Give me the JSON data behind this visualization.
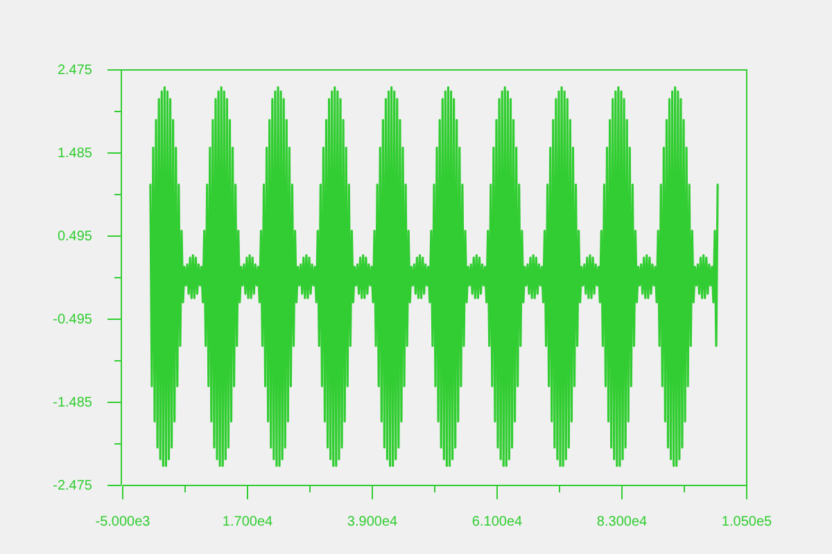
{
  "chart_data": {
    "type": "line",
    "x": [
      0,
      250,
      500,
      750,
      1000,
      1250,
      1500,
      1750,
      2000,
      2250,
      2500,
      2750,
      3000,
      3250,
      3500,
      3750,
      4000,
      4250,
      4500,
      4750,
      5000,
      5250,
      5500,
      5750,
      6000,
      6250,
      6500,
      6750,
      7000,
      7250,
      7500,
      7750,
      8000,
      8250,
      8500,
      8750,
      9000,
      9250,
      9500,
      9750,
      10000,
      10250,
      10500,
      10750,
      11000,
      11250,
      11500,
      11750,
      12000,
      12250,
      12500,
      12750,
      13000,
      13250,
      13500,
      13750,
      14000,
      14250,
      14500,
      14750,
      15000,
      15250,
      15500,
      15750,
      16000,
      16250,
      16500,
      16750,
      17000,
      17250,
      17500,
      17750,
      18000,
      18250,
      18500,
      18750,
      19000,
      19250,
      19500,
      19750,
      20000,
      20250,
      20500,
      20750,
      21000,
      21250,
      21500,
      21750,
      22000,
      22250,
      22500,
      22750,
      23000,
      23250,
      23500,
      23750,
      24000,
      24250,
      24500,
      24750,
      25000,
      25250,
      25500,
      25750,
      26000,
      26250,
      26500,
      26750,
      27000,
      27250,
      27500,
      27750,
      28000,
      28250,
      28500,
      28750,
      29000,
      29250,
      29500,
      29750,
      30000,
      30250,
      30500,
      30750,
      31000,
      31250,
      31500,
      31750,
      32000,
      32250,
      32500,
      32750,
      33000,
      33250,
      33500,
      33750,
      34000,
      34250,
      34500,
      34750,
      35000,
      35250,
      35500,
      35750,
      36000,
      36250,
      36500,
      36750,
      37000,
      37250,
      37500,
      37750,
      38000,
      38250,
      38500,
      38750,
      39000,
      39250,
      39500,
      39750,
      40000,
      40250,
      40500,
      40750,
      41000,
      41250,
      41500,
      41750,
      42000,
      42250,
      42500,
      42750,
      43000,
      43250,
      43500,
      43750,
      44000,
      44250,
      44500,
      44750,
      45000,
      45250,
      45500,
      45750,
      46000,
      46250,
      46500,
      46750,
      47000,
      47250,
      47500,
      47750,
      48000,
      48250,
      48500,
      48750,
      49000,
      49250,
      49500,
      49750,
      50000,
      50250,
      50500,
      50750,
      51000,
      51250,
      51500,
      51750,
      52000,
      52250,
      52500,
      52750,
      53000,
      53250,
      53500,
      53750,
      54000,
      54250,
      54500,
      54750,
      55000,
      55250,
      55500,
      55750,
      56000,
      56250,
      56500,
      56750,
      57000,
      57250,
      57500,
      57750,
      58000,
      58250,
      58500,
      58750,
      59000,
      59250,
      59500,
      59750,
      60000,
      60250,
      60500,
      60750,
      61000,
      61250,
      61500,
      61750,
      62000,
      62250,
      62500,
      62750,
      63000,
      63250,
      63500,
      63750,
      64000,
      64250,
      64500,
      64750,
      65000,
      65250,
      65500,
      65750,
      66000,
      66250,
      66500,
      66750,
      67000,
      67250,
      67500,
      67750,
      68000,
      68250,
      68500,
      68750,
      69000,
      69250,
      69500,
      69750,
      70000,
      70250,
      70500,
      70750,
      71000,
      71250,
      71500,
      71750,
      72000,
      72250,
      72500,
      72750,
      73000,
      73250,
      73500,
      73750,
      74000,
      74250,
      74500,
      74750,
      75000,
      75250,
      75500,
      75750,
      76000,
      76250,
      76500,
      76750,
      77000,
      77250,
      77500,
      77750,
      78000,
      78250,
      78500,
      78750,
      79000,
      79250,
      79500,
      79750,
      80000,
      80250,
      80500,
      80750,
      81000,
      81250,
      81500,
      81750,
      82000,
      82250,
      82500,
      82750,
      83000,
      83250,
      83500,
      83750,
      84000,
      84250,
      84500,
      84750,
      85000,
      85250,
      85500,
      85750,
      86000,
      86250,
      86500,
      86750,
      87000,
      87250,
      87500,
      87750,
      88000,
      88250,
      88500,
      88750,
      89000,
      89250,
      89500,
      89750,
      90000,
      90250,
      90500,
      90750,
      91000,
      91250,
      91500,
      91750,
      92000,
      92250,
      92500,
      92750,
      93000,
      93250,
      93500,
      93750,
      94000,
      94250,
      94500,
      94750,
      95000,
      95250,
      95500,
      95750,
      96000,
      96250,
      96500,
      96750,
      97000,
      97250,
      97500,
      97750,
      98000,
      98250,
      98500,
      98750,
      99000,
      99250,
      99500,
      99750,
      100000
    ],
    "series": [
      {
        "color": "#32cd32",
        "values": [
          1.1,
          -1.3,
          1.54,
          -1.72,
          1.87,
          -2.03,
          2.12,
          -2.17,
          2.21,
          -2.25,
          2.26,
          -2.25,
          2.21,
          -2.17,
          2.12,
          -2.03,
          1.87,
          -1.72,
          1.54,
          -1.3,
          1.1,
          -0.82,
          0.55,
          -0.3,
          0.12,
          -0.1,
          0.15,
          -0.2,
          0.23,
          -0.25,
          0.26,
          -0.25,
          0.23,
          -0.2,
          0.15,
          -0.1,
          0.12,
          -0.3,
          0.55,
          -0.82,
          1.1,
          -1.3,
          1.54,
          -1.72,
          1.87,
          -2.03,
          2.12,
          -2.17,
          2.21,
          -2.25,
          2.26,
          -2.25,
          2.21,
          -2.17,
          2.12,
          -2.03,
          1.87,
          -1.72,
          1.54,
          -1.3,
          1.1,
          -0.82,
          0.55,
          -0.3,
          0.12,
          -0.1,
          0.15,
          -0.2,
          0.23,
          -0.25,
          0.26,
          -0.25,
          0.23,
          -0.2,
          0.15,
          -0.1,
          0.12,
          -0.3,
          0.55,
          -0.82,
          1.1,
          -1.3,
          1.54,
          -1.72,
          1.87,
          -2.03,
          2.12,
          -2.17,
          2.21,
          -2.25,
          2.26,
          -2.25,
          2.21,
          -2.17,
          2.12,
          -2.03,
          1.87,
          -1.72,
          1.54,
          -1.3,
          1.1,
          -0.82,
          0.55,
          -0.3,
          0.12,
          -0.1,
          0.15,
          -0.2,
          0.23,
          -0.25,
          0.26,
          -0.25,
          0.23,
          -0.2,
          0.15,
          -0.1,
          0.12,
          -0.3,
          0.55,
          -0.82,
          1.1,
          -1.3,
          1.54,
          -1.72,
          1.87,
          -2.03,
          2.12,
          -2.17,
          2.21,
          -2.25,
          2.26,
          -2.25,
          2.21,
          -2.17,
          2.12,
          -2.03,
          1.87,
          -1.72,
          1.54,
          -1.3,
          1.1,
          -0.82,
          0.55,
          -0.3,
          0.12,
          -0.1,
          0.15,
          -0.2,
          0.23,
          -0.25,
          0.26,
          -0.25,
          0.23,
          -0.2,
          0.15,
          -0.1,
          0.12,
          -0.3,
          0.55,
          -0.82,
          1.1,
          -1.3,
          1.54,
          -1.72,
          1.87,
          -2.03,
          2.12,
          -2.17,
          2.21,
          -2.25,
          2.26,
          -2.25,
          2.21,
          -2.17,
          2.12,
          -2.03,
          1.87,
          -1.72,
          1.54,
          -1.3,
          1.1,
          -0.82,
          0.55,
          -0.3,
          0.12,
          -0.1,
          0.15,
          -0.2,
          0.23,
          -0.25,
          0.26,
          -0.25,
          0.23,
          -0.2,
          0.15,
          -0.1,
          0.12,
          -0.3,
          0.55,
          -0.82,
          1.1,
          -1.3,
          1.54,
          -1.72,
          1.87,
          -2.03,
          2.12,
          -2.17,
          2.21,
          -2.25,
          2.26,
          -2.25,
          2.21,
          -2.17,
          2.12,
          -2.03,
          1.87,
          -1.72,
          1.54,
          -1.3,
          1.1,
          -0.82,
          0.55,
          -0.3,
          0.12,
          -0.1,
          0.15,
          -0.2,
          0.23,
          -0.25,
          0.26,
          -0.25,
          0.23,
          -0.2,
          0.15,
          -0.1,
          0.12,
          -0.3,
          0.55,
          -0.82,
          1.1,
          -1.3,
          1.54,
          -1.72,
          1.87,
          -2.03,
          2.12,
          -2.17,
          2.21,
          -2.25,
          2.26,
          -2.25,
          2.21,
          -2.17,
          2.12,
          -2.03,
          1.87,
          -1.72,
          1.54,
          -1.3,
          1.1,
          -0.82,
          0.55,
          -0.3,
          0.12,
          -0.1,
          0.15,
          -0.2,
          0.23,
          -0.25,
          0.26,
          -0.25,
          0.23,
          -0.2,
          0.15,
          -0.1,
          0.12,
          -0.3,
          0.55,
          -0.82,
          1.1,
          -1.3,
          1.54,
          -1.72,
          1.87,
          -2.03,
          2.12,
          -2.17,
          2.21,
          -2.25,
          2.26,
          -2.25,
          2.21,
          -2.17,
          2.12,
          -2.03,
          1.87,
          -1.72,
          1.54,
          -1.3,
          1.1,
          -0.82,
          0.55,
          -0.3,
          0.12,
          -0.1,
          0.15,
          -0.2,
          0.23,
          -0.25,
          0.26,
          -0.25,
          0.23,
          -0.2,
          0.15,
          -0.1,
          0.12,
          -0.3,
          0.55,
          -0.82,
          1.1,
          -1.3,
          1.54,
          -1.72,
          1.87,
          -2.03,
          2.12,
          -2.17,
          2.21,
          -2.25,
          2.26,
          -2.25,
          2.21,
          -2.17,
          2.12,
          -2.03,
          1.87,
          -1.72,
          1.54,
          -1.3,
          1.1,
          -0.82,
          0.55,
          -0.3,
          0.12,
          -0.1,
          0.15,
          -0.2,
          0.23,
          -0.25,
          0.26,
          -0.25,
          0.23,
          -0.2,
          0.15,
          -0.1,
          0.12,
          -0.3,
          0.55,
          -0.82,
          1.1,
          -1.3,
          1.54,
          -1.72,
          1.87,
          -2.03,
          2.12,
          -2.17,
          2.21,
          -2.25,
          2.26,
          -2.25,
          2.21,
          -2.17,
          2.12,
          -2.03,
          1.87,
          -1.72,
          1.54,
          -1.3,
          1.1,
          -0.82,
          0.55,
          -0.3,
          0.12,
          -0.1,
          0.15,
          -0.2,
          0.23,
          -0.25,
          0.26,
          -0.25,
          0.23,
          -0.2,
          0.15,
          -0.1,
          0.12,
          -0.3,
          0.55,
          -0.82,
          1.1
        ]
      }
    ],
    "xlim": [
      -5000,
      105000
    ],
    "ylim": [
      -2.475,
      2.475
    ],
    "xticks": [
      {
        "value": -5000,
        "label": "-5.000e3"
      },
      {
        "value": 6000,
        "label": null
      },
      {
        "value": 17000,
        "label": "1.700e4"
      },
      {
        "value": 28000,
        "label": null
      },
      {
        "value": 39000,
        "label": "3.900e4"
      },
      {
        "value": 50000,
        "label": null
      },
      {
        "value": 61000,
        "label": "6.100e4"
      },
      {
        "value": 72000,
        "label": null
      },
      {
        "value": 83000,
        "label": "8.300e4"
      },
      {
        "value": 94000,
        "label": null
      },
      {
        "value": 105000,
        "label": "1.050e5"
      }
    ],
    "yticks": [
      -2.475,
      {
        "value": -1.98,
        "label": null
      },
      -1.485,
      {
        "value": -0.99,
        "label": null
      },
      -0.495,
      {
        "value": 0,
        "label": null
      },
      0.495,
      {
        "value": 0.99,
        "label": null
      },
      1.485,
      {
        "value": 1.98,
        "label": null
      },
      2.475
    ]
  }
}
